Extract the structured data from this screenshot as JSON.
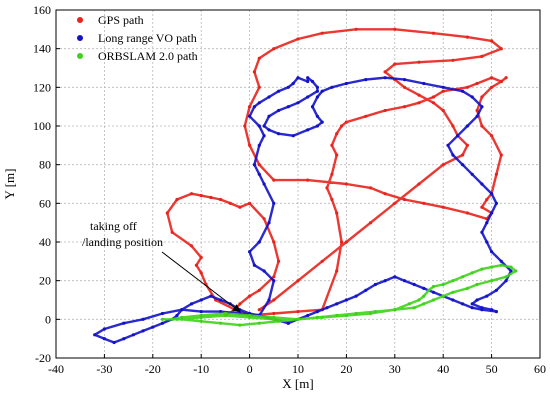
{
  "chart_data": {
    "type": "line",
    "title": "",
    "xlabel": "X [m]",
    "ylabel": "Y [m]",
    "xlim": [
      -40,
      60
    ],
    "ylim": [
      -20,
      160
    ],
    "xticks": [
      -40,
      -30,
      -20,
      -10,
      0,
      10,
      20,
      30,
      40,
      50,
      60
    ],
    "yticks": [
      -20,
      0,
      20,
      40,
      60,
      80,
      100,
      120,
      140,
      160
    ],
    "grid": true,
    "legend_position": "top-left",
    "annotation": {
      "lines": [
        "taking off",
        "/landing position"
      ],
      "arrow_from": [
        -5,
        27
      ],
      "arrow_to": [
        -2,
        4
      ]
    },
    "series": [
      {
        "name": "GPS path",
        "color": "#e8231c",
        "x": [
          -5,
          -3,
          -2,
          0,
          2,
          5,
          6,
          5,
          3,
          0,
          -2,
          -4,
          -6,
          -8,
          -10,
          -12,
          -15,
          -17,
          -16,
          -12,
          -10,
          -11,
          -10,
          -9,
          -7,
          -3,
          0,
          5,
          10,
          15,
          18,
          19,
          18,
          17,
          16,
          17,
          18,
          17,
          18,
          19,
          20,
          24,
          28,
          32,
          35,
          38,
          40,
          45,
          47,
          50,
          52,
          53,
          52,
          50,
          48,
          47,
          48,
          50,
          52,
          51,
          50,
          49,
          48,
          50,
          49,
          45,
          40,
          36,
          32,
          28,
          25,
          20,
          12,
          5,
          2,
          0,
          -1,
          0,
          2,
          1,
          2,
          5,
          10,
          15,
          22,
          30,
          38,
          45,
          50,
          52,
          48,
          42,
          35,
          30,
          28,
          30,
          32,
          35,
          38,
          40,
          42,
          43,
          45,
          44,
          40,
          35,
          30,
          25,
          20,
          15,
          10,
          5,
          2
        ],
        "y": [
          2,
          5,
          8,
          12,
          15,
          22,
          30,
          40,
          52,
          60,
          58,
          60,
          62,
          63,
          64,
          65,
          62,
          55,
          45,
          38,
          32,
          28,
          24,
          18,
          10,
          5,
          2,
          3,
          4,
          5,
          25,
          40,
          55,
          62,
          68,
          75,
          85,
          90,
          96,
          100,
          102,
          105,
          108,
          110,
          112,
          115,
          118,
          120,
          122,
          125,
          123,
          125,
          123,
          120,
          115,
          108,
          100,
          95,
          85,
          75,
          65,
          62,
          58,
          55,
          52,
          55,
          58,
          60,
          62,
          65,
          68,
          70,
          72,
          72,
          80,
          90,
          100,
          110,
          120,
          128,
          135,
          140,
          145,
          148,
          150,
          150,
          148,
          146,
          144,
          140,
          136,
          134,
          133,
          132,
          128,
          124,
          120,
          116,
          112,
          108,
          100,
          95,
          90,
          85,
          80,
          70,
          60,
          50,
          40,
          30,
          20,
          10,
          5
        ]
      },
      {
        "name": "Long range VO path",
        "color": "#1212c8",
        "x": [
          8,
          5,
          2,
          -2,
          -6,
          -10,
          -14,
          -18,
          -22,
          -26,
          -30,
          -32,
          -30,
          -28,
          -26,
          -24,
          -22,
          -20,
          -18,
          -16,
          -15,
          -14,
          -12,
          -10,
          -8,
          -6,
          -4,
          -2,
          0,
          2,
          4,
          5,
          3,
          1,
          0,
          2,
          4,
          5,
          3,
          2,
          1,
          2,
          3,
          2,
          0,
          1,
          2,
          4,
          6,
          8,
          9,
          10,
          12,
          12,
          13,
          14,
          14,
          12,
          10,
          8,
          6,
          4,
          3,
          4,
          6,
          9,
          12,
          14,
          15,
          14,
          13,
          14,
          15,
          17,
          20,
          24,
          28,
          32,
          36,
          40,
          44,
          46,
          48,
          47,
          45,
          43,
          41,
          42,
          44,
          46,
          48,
          50,
          51,
          50,
          49,
          48,
          49,
          50,
          52,
          54,
          53,
          51,
          49,
          47,
          46,
          48,
          50,
          51,
          48,
          46,
          44,
          42,
          40,
          38,
          36,
          34,
          32,
          30,
          28,
          26,
          24,
          22,
          20,
          18,
          16,
          14,
          12,
          10,
          8
        ],
        "y": [
          -2,
          0,
          2,
          3,
          4,
          4,
          5,
          3,
          0,
          -2,
          -5,
          -8,
          -10,
          -12,
          -10,
          -8,
          -6,
          -4,
          -2,
          0,
          2,
          5,
          8,
          10,
          12,
          10,
          8,
          5,
          3,
          2,
          10,
          20,
          25,
          28,
          35,
          40,
          50,
          60,
          70,
          75,
          80,
          90,
          95,
          100,
          105,
          110,
          112,
          115,
          118,
          120,
          122,
          125,
          123,
          125,
          123,
          120,
          118,
          115,
          112,
          110,
          108,
          105,
          100,
          98,
          96,
          95,
          98,
          100,
          102,
          105,
          110,
          115,
          118,
          120,
          122,
          124,
          125,
          124,
          122,
          120,
          118,
          115,
          110,
          105,
          100,
          95,
          90,
          85,
          80,
          75,
          70,
          65,
          60,
          55,
          50,
          45,
          40,
          35,
          30,
          25,
          20,
          15,
          12,
          10,
          8,
          6,
          5,
          4,
          5,
          6,
          8,
          10,
          12,
          14,
          16,
          18,
          20,
          22,
          20,
          18,
          15,
          12,
          10,
          8,
          6,
          4,
          2,
          0,
          -2
        ]
      },
      {
        "name": "ORBSLAM 2.0 path",
        "color": "#3ed31a",
        "x": [
          -18,
          -15,
          -10,
          -5,
          0,
          5,
          10,
          15,
          20,
          25,
          30,
          33,
          35,
          36,
          37,
          38,
          40,
          42,
          44,
          46,
          48,
          50,
          52,
          54,
          55,
          53,
          50,
          47,
          45,
          42,
          40,
          38,
          36,
          34,
          30,
          26,
          22,
          18,
          14,
          10,
          6,
          2,
          -2,
          -6,
          -10,
          -14,
          -16,
          -14,
          -10,
          -5,
          0,
          5,
          10
        ],
        "y": [
          0,
          0,
          1,
          2,
          1,
          0,
          0,
          1,
          2,
          3,
          5,
          8,
          10,
          12,
          15,
          17,
          18,
          20,
          22,
          24,
          26,
          27,
          28,
          27,
          25,
          22,
          20,
          18,
          16,
          14,
          12,
          10,
          8,
          6,
          5,
          4,
          3,
          2,
          1,
          0,
          -1,
          -2,
          -3,
          -2,
          -1,
          0,
          0,
          1,
          2,
          3,
          2,
          1,
          0
        ]
      }
    ]
  }
}
